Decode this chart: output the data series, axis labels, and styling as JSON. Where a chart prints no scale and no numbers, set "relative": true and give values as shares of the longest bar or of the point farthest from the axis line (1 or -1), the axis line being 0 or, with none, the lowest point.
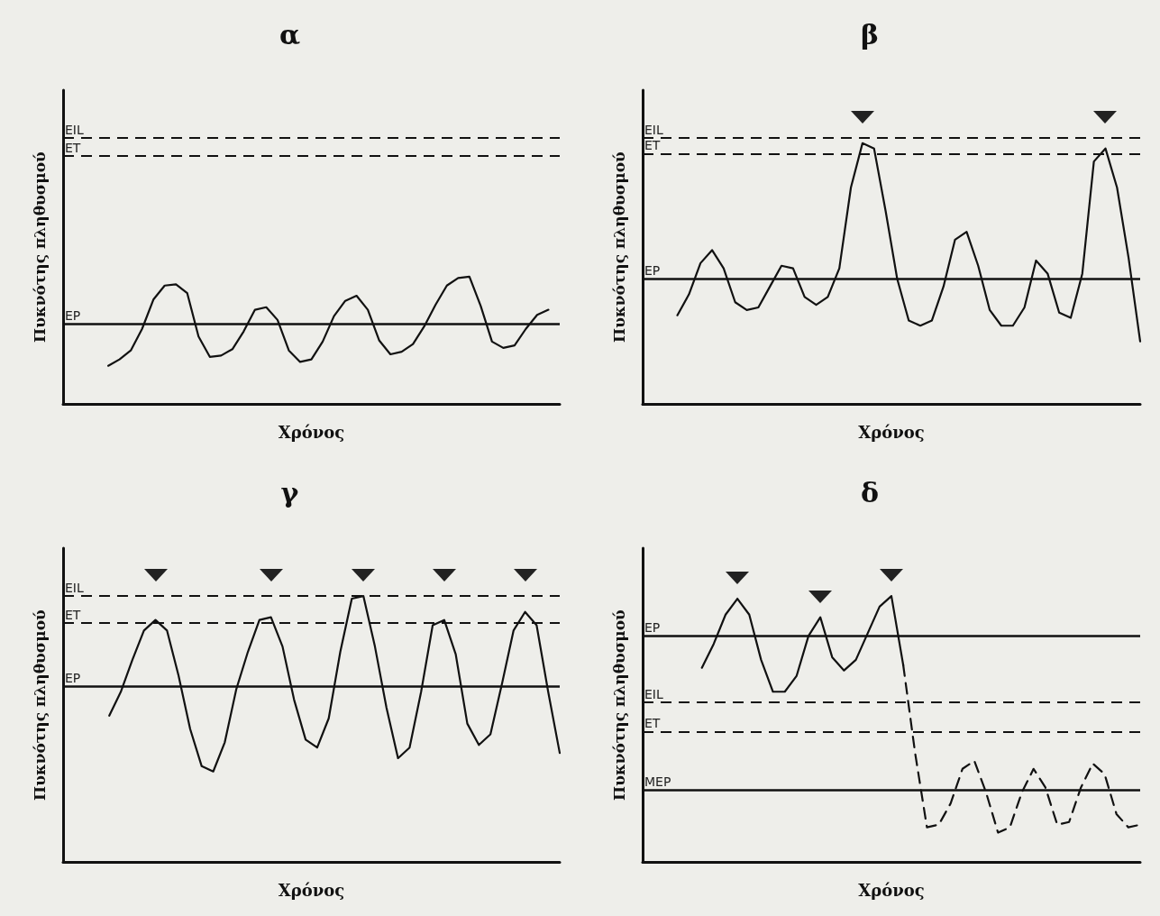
{
  "chart_data": [
    {
      "type": "line",
      "title": "α",
      "xlabel": "Χρόνος",
      "ylabel": "Πυκνότης πληθυσμού",
      "relative": true,
      "marker": "none",
      "grid": false,
      "categories": [
        null,
        null,
        null,
        null,
        null,
        null,
        null,
        null,
        null,
        null,
        null,
        null,
        null,
        null,
        null,
        null,
        null,
        null,
        null,
        null,
        null,
        null,
        null,
        null,
        null,
        null,
        null,
        null,
        null,
        null,
        null,
        null,
        null,
        null,
        null,
        null,
        null,
        null,
        null,
        null,
        null,
        null,
        null,
        null,
        null
      ],
      "series": [
        {
          "color": "#111111",
          "values": [
            null,
            null,
            null,
            null,
            0.3,
            0.35,
            0.42,
            0.59,
            0.82,
            0.93,
            0.94,
            0.87,
            0.53,
            0.37,
            0.38,
            0.43,
            0.57,
            0.74,
            0.76,
            0.66,
            0.42,
            0.33,
            0.35,
            0.49,
            0.69,
            0.81,
            0.85,
            0.74,
            0.5,
            0.39,
            0.41,
            0.47,
            0.61,
            0.78,
            0.93,
            0.99,
            1.0,
            0.77,
            0.49,
            0.44,
            0.46,
            0.59,
            0.7,
            0.74,
            null
          ]
        }
      ],
      "ref_lines": [
        {
          "axis": "y",
          "value": 2.09,
          "label": "EIL",
          "color": "#111111",
          "line_style": "dashed"
        },
        {
          "axis": "y",
          "value": 1.95,
          "label": "ET",
          "color": "#111111",
          "line_style": "dashed"
        },
        {
          "axis": "y",
          "value": 0.63,
          "label": "EP",
          "color": "#111111",
          "line_style": "solid"
        }
      ]
    },
    {
      "type": "line",
      "title": "β",
      "xlabel": "Χρόνος",
      "ylabel": "Πυκνότης πληθυσμού",
      "relative": true,
      "marker": "none",
      "grid": false,
      "categories": [
        null,
        null,
        null,
        null,
        null,
        null,
        null,
        null,
        null,
        null,
        null,
        null,
        null,
        null,
        null,
        null,
        null,
        null,
        null,
        null,
        null,
        null,
        null,
        null,
        null,
        null,
        null,
        null,
        null,
        null,
        null,
        null,
        null,
        null,
        null,
        null,
        null,
        null,
        null,
        null,
        null,
        null,
        null,
        null
      ],
      "series": [
        {
          "color": "#111111",
          "values": [
            null,
            null,
            null,
            0.34,
            0.42,
            0.54,
            0.59,
            0.52,
            0.39,
            0.36,
            0.37,
            0.45,
            0.53,
            0.52,
            0.41,
            0.38,
            0.41,
            0.52,
            0.83,
            1.0,
            0.98,
            0.74,
            0.48,
            0.32,
            0.3,
            0.32,
            0.45,
            0.63,
            0.66,
            0.53,
            0.36,
            0.3,
            0.3,
            0.37,
            0.55,
            0.5,
            0.35,
            0.33,
            0.5,
            0.93,
            0.98,
            0.83,
            0.56,
            0.24
          ]
        }
      ],
      "ref_lines": [
        {
          "axis": "y",
          "value": 1.02,
          "label": "EIL",
          "color": "#111111",
          "line_style": "dashed"
        },
        {
          "axis": "y",
          "value": 0.96,
          "label": "ET",
          "color": "#111111",
          "line_style": "dashed"
        },
        {
          "axis": "y",
          "value": 0.48,
          "label": "EP",
          "color": "#111111",
          "line_style": "solid"
        }
      ]
    },
    {
      "type": "line",
      "title": "γ",
      "xlabel": "Χρόνος",
      "ylabel": "Πυκνότης πληθυσμού",
      "relative": true,
      "marker": "none",
      "grid": false,
      "categories": [
        null,
        null,
        null,
        null,
        null,
        null,
        null,
        null,
        null,
        null,
        null,
        null,
        null,
        null,
        null,
        null,
        null,
        null,
        null,
        null,
        null,
        null,
        null,
        null,
        null,
        null,
        null,
        null,
        null,
        null,
        null,
        null,
        null,
        null,
        null,
        null,
        null,
        null,
        null,
        null,
        null,
        null,
        null,
        null
      ],
      "series": [
        {
          "color": "#111111",
          "values": [
            null,
            null,
            null,
            null,
            0.55,
            0.64,
            0.76,
            0.87,
            0.91,
            0.87,
            0.7,
            0.5,
            0.36,
            0.34,
            0.45,
            0.65,
            0.79,
            0.91,
            0.92,
            0.81,
            0.61,
            0.46,
            0.43,
            0.54,
            0.79,
            0.99,
            1.0,
            0.81,
            0.58,
            0.39,
            0.43,
            0.64,
            0.89,
            0.91,
            0.78,
            0.52,
            0.44,
            0.48,
            0.67,
            0.87,
            0.94,
            0.89,
            0.64,
            0.41
          ]
        }
      ],
      "ref_lines": [
        {
          "axis": "y",
          "value": 1.0,
          "label": "EIL",
          "color": "#111111",
          "line_style": "dashed"
        },
        {
          "axis": "y",
          "value": 0.9,
          "label": "ET",
          "color": "#111111",
          "line_style": "dashed"
        },
        {
          "axis": "y",
          "value": 0.66,
          "label": "EP",
          "color": "#111111",
          "line_style": "solid"
        }
      ]
    },
    {
      "type": "line",
      "title": "δ",
      "xlabel": "Χρόνος",
      "ylabel": "Πυκνότης πληθυσμού",
      "relative": true,
      "marker": "none",
      "grid": false,
      "categories": [
        null,
        null,
        null,
        null,
        null,
        null,
        null,
        null,
        null,
        null,
        null,
        null,
        null,
        null,
        null,
        null,
        null,
        null,
        null,
        null,
        null,
        null,
        null,
        null,
        null,
        null,
        null,
        null,
        null,
        null,
        null,
        null,
        null,
        null,
        null,
        null,
        null,
        null,
        null,
        null,
        null,
        null,
        null
      ],
      "series": [
        {
          "color": "#111111",
          "line_style": "solid",
          "values": [
            null,
            null,
            null,
            null,
            null,
            0.73,
            0.82,
            0.93,
            0.99,
            0.93,
            0.76,
            0.64,
            0.64,
            0.7,
            0.85,
            0.92,
            0.77,
            0.72,
            0.76,
            0.86,
            0.96,
            1.0,
            0.74,
            null,
            null,
            null,
            null,
            null,
            null,
            null,
            null,
            null,
            null,
            null,
            null,
            null,
            null,
            null,
            null,
            null,
            null,
            null,
            null
          ]
        },
        {
          "color": "#111111",
          "line_style": "dashed",
          "values": [
            null,
            null,
            null,
            null,
            null,
            null,
            null,
            null,
            null,
            null,
            null,
            null,
            null,
            null,
            null,
            null,
            null,
            null,
            null,
            null,
            null,
            null,
            0.74,
            0.41,
            0.13,
            0.14,
            0.22,
            0.35,
            0.38,
            0.26,
            0.11,
            0.13,
            0.26,
            0.35,
            0.28,
            0.14,
            0.15,
            0.28,
            0.37,
            0.33,
            0.18,
            0.13,
            0.14
          ]
        }
      ],
      "ref_lines": [
        {
          "axis": "y",
          "value": 0.85,
          "label": "EP",
          "color": "#111111",
          "line_style": "solid"
        },
        {
          "axis": "y",
          "value": 0.6,
          "label": "EIL",
          "color": "#111111",
          "line_style": "dashed"
        },
        {
          "axis": "y",
          "value": 0.49,
          "label": "ET",
          "color": "#111111",
          "line_style": "dashed"
        },
        {
          "axis": "y",
          "value": 0.27,
          "label": "MEP",
          "color": "#111111",
          "line_style": "solid"
        }
      ]
    }
  ]
}
